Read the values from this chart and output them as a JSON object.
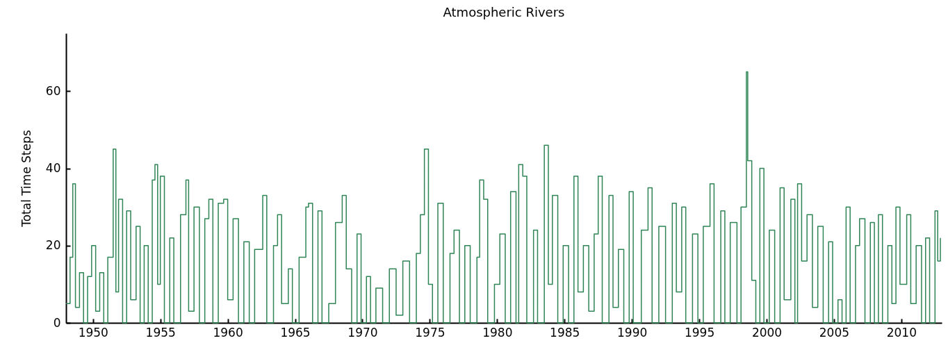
{
  "chart_data": {
    "type": "step",
    "title": "Atmospheric Rivers",
    "ylabel": "Total Time Steps",
    "x": [
      1948.0,
      1948.3,
      1948.5,
      1948.7,
      1949.0,
      1949.3,
      1949.6,
      1949.9,
      1950.2,
      1950.5,
      1950.8,
      1951.1,
      1951.5,
      1951.7,
      1951.9,
      1952.2,
      1952.5,
      1952.8,
      1953.2,
      1953.5,
      1953.8,
      1954.1,
      1954.4,
      1954.6,
      1954.8,
      1955.0,
      1955.3,
      1955.7,
      1956.0,
      1956.5,
      1956.9,
      1957.1,
      1957.5,
      1957.9,
      1958.3,
      1958.6,
      1958.9,
      1959.3,
      1959.7,
      1960.0,
      1960.4,
      1960.8,
      1961.2,
      1961.6,
      1962.0,
      1962.6,
      1962.9,
      1963.4,
      1963.7,
      1964.0,
      1964.5,
      1964.8,
      1965.3,
      1965.8,
      1966.0,
      1966.3,
      1966.7,
      1967.0,
      1967.5,
      1968.0,
      1968.5,
      1968.8,
      1969.2,
      1969.6,
      1969.9,
      1970.3,
      1970.6,
      1971.0,
      1971.5,
      1972.0,
      1972.5,
      1973.0,
      1973.5,
      1974.0,
      1974.3,
      1974.6,
      1974.9,
      1975.2,
      1975.6,
      1976.0,
      1976.5,
      1976.8,
      1977.2,
      1977.6,
      1978.0,
      1978.5,
      1978.7,
      1979.0,
      1979.3,
      1979.8,
      1980.2,
      1980.6,
      1981.0,
      1981.4,
      1981.6,
      1981.9,
      1982.2,
      1982.7,
      1983.0,
      1983.5,
      1983.8,
      1984.1,
      1984.5,
      1984.9,
      1985.3,
      1985.7,
      1986.0,
      1986.4,
      1986.8,
      1987.2,
      1987.5,
      1987.8,
      1988.3,
      1988.6,
      1989.0,
      1989.4,
      1989.8,
      1990.1,
      1990.7,
      1991.2,
      1991.5,
      1992.0,
      1992.5,
      1993.0,
      1993.3,
      1993.7,
      1994.0,
      1994.5,
      1994.9,
      1995.3,
      1995.8,
      1996.1,
      1996.6,
      1996.9,
      1997.3,
      1997.8,
      1998.1,
      1998.5,
      1998.6,
      1998.9,
      1999.2,
      1999.5,
      1999.8,
      2000.2,
      2000.6,
      2001.0,
      2001.3,
      2001.8,
      2002.1,
      2002.3,
      2002.6,
      2003.0,
      2003.4,
      2003.8,
      2004.2,
      2004.6,
      2004.9,
      2005.3,
      2005.6,
      2005.9,
      2006.2,
      2006.6,
      2006.9,
      2007.3,
      2007.7,
      2008.0,
      2008.3,
      2008.6,
      2009.0,
      2009.3,
      2009.6,
      2009.9,
      2010.4,
      2010.7,
      2011.1,
      2011.5,
      2011.8,
      2012.1,
      2012.5,
      2012.7,
      2012.9
    ],
    "series": [
      {
        "color": "#2f8556",
        "values": [
          5,
          17,
          36,
          4,
          13,
          0,
          12,
          20,
          3,
          13,
          0,
          17,
          45,
          8,
          32,
          0,
          29,
          6,
          25,
          0,
          20,
          0,
          37,
          41,
          10,
          38,
          0,
          22,
          0,
          28,
          37,
          3,
          30,
          0,
          27,
          32,
          0,
          31,
          32,
          6,
          27,
          0,
          21,
          0,
          19,
          33,
          0,
          20,
          28,
          5,
          14,
          0,
          17,
          30,
          31,
          0,
          29,
          0,
          5,
          26,
          33,
          14,
          0,
          23,
          0,
          12,
          0,
          9,
          0,
          14,
          2,
          16,
          0,
          18,
          28,
          45,
          10,
          0,
          31,
          0,
          18,
          24,
          0,
          20,
          0,
          17,
          37,
          32,
          0,
          10,
          23,
          0,
          34,
          0,
          41,
          38,
          0,
          24,
          0,
          46,
          10,
          33,
          0,
          20,
          0,
          38,
          8,
          20,
          3,
          23,
          38,
          0,
          33,
          4,
          19,
          0,
          34,
          0,
          24,
          35,
          0,
          25,
          0,
          31,
          8,
          30,
          0,
          23,
          0,
          25,
          36,
          0,
          29,
          0,
          26,
          0,
          30,
          65,
          42,
          11,
          0,
          40,
          0,
          24,
          0,
          35,
          6,
          32,
          0,
          36,
          16,
          28,
          4,
          25,
          0,
          21,
          0,
          6,
          0,
          30,
          0,
          20,
          27,
          0,
          26,
          0,
          28,
          0,
          20,
          5,
          30,
          10,
          28,
          5,
          20,
          0,
          22,
          0,
          29,
          16,
          22
        ]
      }
    ],
    "xlim": [
      1948,
      2013
    ],
    "xticks": [
      1950,
      1955,
      1960,
      1965,
      1970,
      1975,
      1980,
      1985,
      1990,
      1995,
      2000,
      2005,
      2010
    ],
    "ylim": [
      0,
      75
    ],
    "yticks": [
      0,
      20,
      40,
      60
    ],
    "grid": false
  }
}
